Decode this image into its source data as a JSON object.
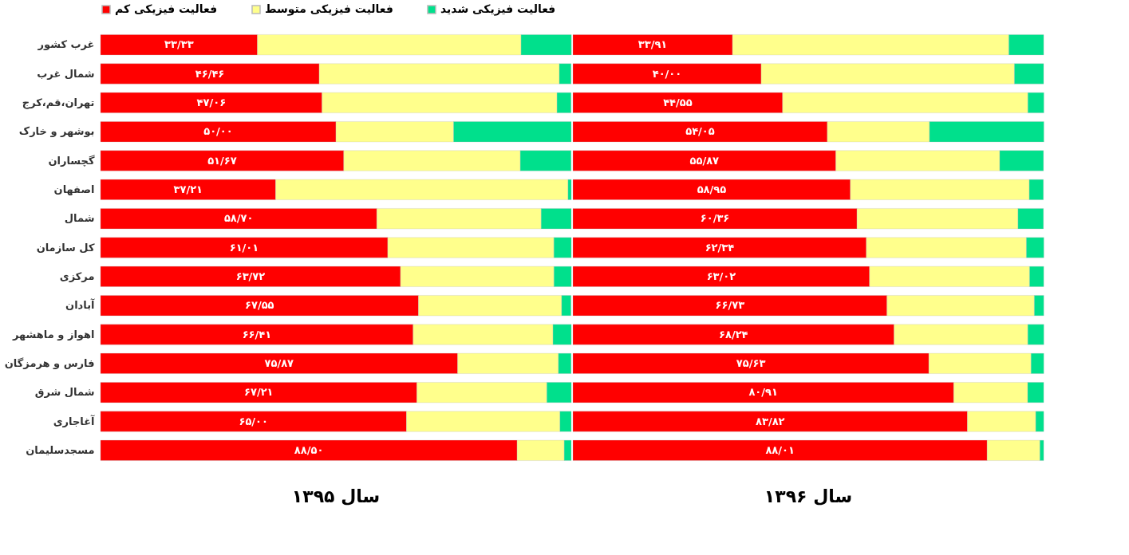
{
  "chart_data": [
    {
      "type": "bar",
      "orientation": "horizontal",
      "stacked": true,
      "title": "سال ۱۳۹۵",
      "legend": "top",
      "tick_labels": "y",
      "xlim": [
        0,
        100
      ],
      "categories": [
        "غرب کشور",
        "شمال غرب",
        "تهران،قم،کرج",
        "بوشهر و خارک",
        "گچساران",
        "اصفهان",
        "شمال",
        "کل سازمان",
        "مرکزی",
        "آبادان",
        "اهواز و ماهشهر",
        "فارس و هرمزگان",
        "شمال شرق",
        "آغاجاری",
        "مسجدسلیمان"
      ],
      "series": [
        {
          "name": "فعالیت فیزیکی کم",
          "color": "#ff0000",
          "values": [
            33.33,
            46.46,
            47.06,
            50.0,
            51.67,
            37.21,
            58.7,
            61.01,
            63.72,
            67.55,
            66.41,
            75.87,
            67.21,
            65.0,
            88.5
          ],
          "value_labels": [
            "۳۳/۳۳",
            "۴۶/۴۶",
            "۴۷/۰۶",
            "۵۰/۰۰",
            "۵۱/۶۷",
            "۳۷/۲۱",
            "۵۸/۷۰",
            "۶۱/۰۱",
            "۶۳/۷۲",
            "۶۷/۵۵",
            "۶۶/۴۱",
            "۷۵/۸۷",
            "۶۷/۲۱",
            "۶۵/۰۰",
            "۸۸/۵۰"
          ]
        },
        {
          "name": "فعالیت فیزیکی متوسط",
          "color": "#ffff8c",
          "values": [
            56.0,
            51.0,
            49.9,
            25.0,
            37.5,
            62.1,
            34.9,
            35.3,
            32.6,
            30.4,
            29.7,
            21.4,
            27.6,
            32.6,
            10.0
          ]
        },
        {
          "name": "فعالیت فیزیکی شدید",
          "color": "#00e08c",
          "values": [
            10.7,
            2.5,
            3.0,
            25.0,
            10.8,
            0.7,
            6.4,
            3.7,
            3.7,
            2.0,
            3.9,
            2.7,
            5.2,
            2.4,
            1.5
          ]
        }
      ]
    },
    {
      "type": "bar",
      "orientation": "horizontal",
      "stacked": true,
      "title": "سال ۱۳۹۶",
      "legend": "top",
      "tick_labels": false,
      "xlim": [
        0,
        100
      ],
      "categories": [
        "غرب کشور",
        "شمال غرب",
        "تهران،قم،کرج",
        "بوشهر و خارک",
        "گچساران",
        "اصفهان",
        "شمال",
        "کل سازمان",
        "مرکزی",
        "آبادان",
        "اهواز و ماهشهر",
        "فارس و هرمزگان",
        "شمال شرق",
        "آغاجاری",
        "مسجدسلیمان"
      ],
      "series": [
        {
          "name": "فعالیت فیزیکی کم",
          "color": "#ff0000",
          "values": [
            33.91,
            40.0,
            44.55,
            54.05,
            55.87,
            58.95,
            60.36,
            62.34,
            63.02,
            66.73,
            68.24,
            75.63,
            80.91,
            83.82,
            88.01
          ],
          "value_labels": [
            "۳۳/۹۱",
            "۴۰/۰۰",
            "۴۴/۵۵",
            "۵۴/۰۵",
            "۵۵/۸۷",
            "۵۸/۹۵",
            "۶۰/۳۶",
            "۶۲/۳۴",
            "۶۳/۰۲",
            "۶۶/۷۳",
            "۶۸/۲۴",
            "۷۵/۶۳",
            "۸۰/۹۱",
            "۸۳/۸۲",
            "۸۸/۰۱"
          ]
        },
        {
          "name": "فعالیت فیزیکی متوسط",
          "color": "#ffff8c",
          "values": [
            58.7,
            53.8,
            52.1,
            21.7,
            34.8,
            38.0,
            34.2,
            34.0,
            34.0,
            31.3,
            28.4,
            21.7,
            15.7,
            14.5,
            11.2
          ]
        },
        {
          "name": "فعالیت فیزیکی شدید",
          "color": "#00e08c",
          "values": [
            7.4,
            6.2,
            3.4,
            24.3,
            9.3,
            3.0,
            5.4,
            3.7,
            3.0,
            2.0,
            3.4,
            2.7,
            3.4,
            1.7,
            0.8
          ]
        }
      ]
    }
  ]
}
